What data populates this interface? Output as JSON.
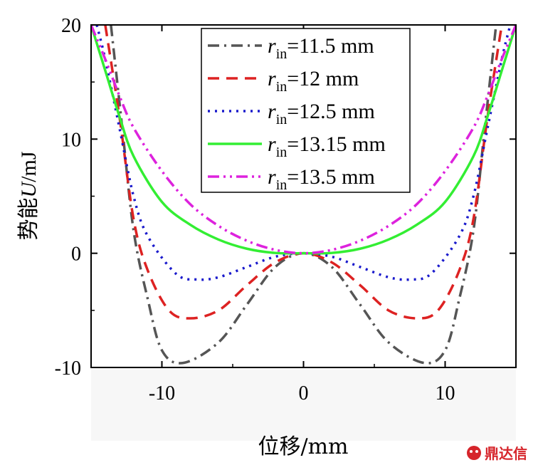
{
  "chart_data": {
    "type": "line",
    "xlabel": "位移/mm",
    "ylabel_prefix": "势能",
    "ylabel_var": "U",
    "ylabel_unit": "/mJ",
    "xlim": [
      -15,
      15
    ],
    "ylim": [
      -10,
      20
    ],
    "x_ticks": [
      -10,
      0,
      10
    ],
    "y_ticks": [
      -10,
      0,
      10,
      20
    ],
    "grid": false,
    "legend_position": "top-center",
    "series": [
      {
        "name": "11.5 mm",
        "legend_var": "r",
        "legend_sub": "in",
        "legend_eq": "=11.5 mm",
        "color": "#555555",
        "dash": "dashdot",
        "min_x": 8.5,
        "min_y": -9.6
      },
      {
        "name": "12 mm",
        "legend_var": "r",
        "legend_sub": "in",
        "legend_eq": "=12 mm",
        "color": "#dd2222",
        "dash": "dash",
        "min_x": 8.0,
        "min_y": -5.7
      },
      {
        "name": "12.5 mm",
        "legend_var": "r",
        "legend_sub": "in",
        "legend_eq": "=12.5 mm",
        "color": "#1a1acc",
        "dash": "dot",
        "min_x": 7.5,
        "min_y": -2.3
      },
      {
        "name": "13.15 mm",
        "legend_var": "r",
        "legend_sub": "in",
        "legend_eq": "=13.15 mm",
        "color": "#33ee33",
        "dash": "solid",
        "min_x": 0,
        "min_y": 0
      },
      {
        "name": "13.5 mm",
        "legend_var": "r",
        "legend_sub": "in",
        "legend_eq": "=13.5 mm",
        "color": "#dd22dd",
        "dash": "dashdotdot",
        "min_x": 0,
        "min_y": 0
      }
    ],
    "curve_anchors": {
      "11.5 mm": [
        [
          0,
          0
        ],
        [
          2,
          -1.2
        ],
        [
          4,
          -4.5
        ],
        [
          6,
          -7.8
        ],
        [
          8.5,
          -9.6
        ],
        [
          10,
          -8.5
        ],
        [
          11,
          -4
        ],
        [
          12,
          2
        ],
        [
          12.8,
          11
        ],
        [
          13.6,
          20
        ]
      ],
      "12 mm": [
        [
          0,
          0
        ],
        [
          2,
          -0.8
        ],
        [
          4,
          -2.8
        ],
        [
          6,
          -5
        ],
        [
          8,
          -5.7
        ],
        [
          9.5,
          -5
        ],
        [
          11,
          -1.5
        ],
        [
          12,
          3
        ],
        [
          13,
          12
        ],
        [
          14,
          20
        ]
      ],
      "12.5 mm": [
        [
          0,
          0
        ],
        [
          2,
          -0.3
        ],
        [
          4,
          -1.2
        ],
        [
          6,
          -2.1
        ],
        [
          7.5,
          -2.3
        ],
        [
          9,
          -1.8
        ],
        [
          11,
          1.5
        ],
        [
          12,
          5
        ],
        [
          13,
          11
        ],
        [
          14,
          17
        ],
        [
          14.6,
          20
        ]
      ],
      "13.15 mm": [
        [
          0,
          0
        ],
        [
          2,
          0.03
        ],
        [
          4,
          0.4
        ],
        [
          6,
          1.2
        ],
        [
          8,
          2.5
        ],
        [
          10,
          4.5
        ],
        [
          12,
          8.5
        ],
        [
          13,
          12
        ],
        [
          14,
          16
        ],
        [
          15,
          20
        ]
      ],
      "13.5 mm": [
        [
          0,
          0
        ],
        [
          2,
          0.3
        ],
        [
          4,
          1.1
        ],
        [
          6,
          2.4
        ],
        [
          8,
          4.3
        ],
        [
          10,
          7.2
        ],
        [
          12,
          11
        ],
        [
          13,
          13.8
        ],
        [
          14,
          17
        ],
        [
          15,
          20
        ]
      ]
    }
  },
  "watermark": {
    "text": "鼎达信",
    "icon": "wechat-logo-icon",
    "color": "#d6252b"
  }
}
